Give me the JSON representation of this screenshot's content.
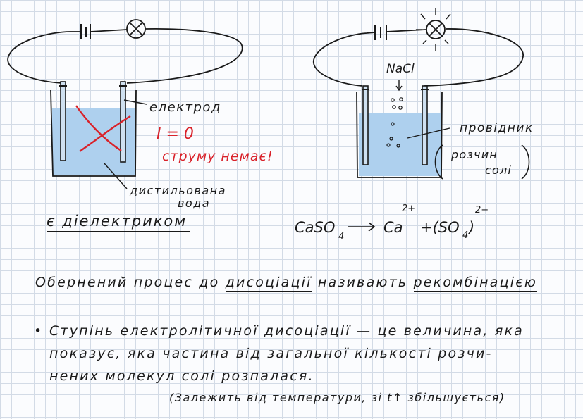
{
  "left_diagram": {
    "label_electrode": "електрод",
    "label_current": "I = 0",
    "label_no_current": "струму немає!",
    "label_water_1": "дистильована",
    "label_water_2": "вода",
    "conclusion": "є діелектриком"
  },
  "right_diagram": {
    "label_salt": "NaCl",
    "label_conductor": "провідник",
    "label_solution_1": "розчин",
    "label_solution_2": "солі"
  },
  "equation": {
    "reactant_main": "CaSO",
    "reactant_sub": "4",
    "product1": "Ca",
    "product1_sup": "2+",
    "product2_open": "+(SO",
    "product2_sub": "4",
    "product2_close": ")",
    "product2_sup": "2−"
  },
  "notes": {
    "line1_a": "Обернений процес до ",
    "line1_b": "дисоціації",
    "line1_c": " називають ",
    "line1_d": "рекомбінацією",
    "bullet": "•",
    "line2": "Ступінь електролітичної дисоціації — це величина, яка",
    "line3": "показує, яка частина від загальної кількості розчи-",
    "line4": "нених молекул солі розпалася.",
    "line5": "(Залежить від температури, зі t↑ збільшується)"
  },
  "colors": {
    "ink": "#1a1a1a",
    "water": "#aed0ee",
    "red": "#d9222a",
    "grid": "#d3dbe6"
  }
}
